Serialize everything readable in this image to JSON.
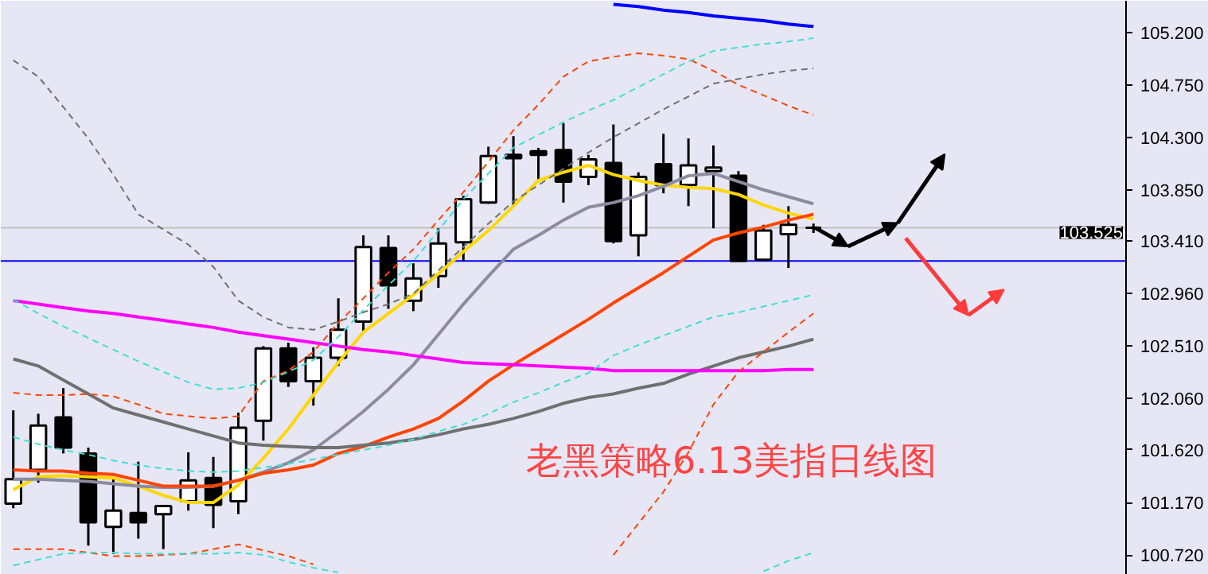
{
  "chart_data": {
    "type": "candlestick",
    "categories": [
      null,
      null,
      null,
      null,
      null,
      null,
      null,
      null,
      null,
      null,
      null,
      null,
      null,
      null,
      null,
      null,
      null,
      null,
      null,
      null,
      null,
      null,
      null,
      null,
      null,
      null,
      null,
      null,
      null,
      null,
      null,
      null,
      null,
      null,
      null,
      null,
      null,
      null,
      null,
      null,
      null,
      null,
      null,
      null,
      null
    ],
    "ohlc": [
      [
        101.16,
        101.96,
        101.12,
        101.37
      ],
      [
        101.45,
        101.93,
        101.34,
        101.83
      ],
      [
        101.9,
        102.15,
        101.59,
        101.64
      ],
      [
        101.59,
        101.64,
        100.8,
        101.0
      ],
      [
        100.96,
        101.38,
        100.73,
        101.1
      ],
      [
        101.08,
        101.52,
        100.86,
        101.0
      ],
      [
        101.07,
        101.14,
        100.77,
        101.14
      ],
      [
        101.18,
        101.6,
        101.1,
        101.36
      ],
      [
        101.38,
        101.56,
        100.95,
        101.15
      ],
      [
        101.18,
        101.94,
        101.07,
        101.81
      ],
      [
        101.87,
        102.51,
        101.7,
        102.49
      ],
      [
        102.49,
        102.54,
        102.16,
        102.21
      ],
      [
        102.21,
        102.5,
        102.0,
        102.41
      ],
      [
        102.41,
        102.92,
        102.34,
        102.65
      ],
      [
        102.72,
        103.46,
        102.64,
        103.36
      ],
      [
        103.35,
        103.46,
        102.83,
        103.03
      ],
      [
        102.9,
        103.22,
        102.81,
        103.09
      ],
      [
        103.11,
        103.52,
        103.01,
        103.39
      ],
      [
        103.4,
        103.8,
        103.24,
        103.77
      ],
      [
        103.74,
        104.22,
        103.73,
        104.14
      ],
      [
        104.15,
        104.31,
        103.71,
        104.12
      ],
      [
        104.18,
        104.21,
        103.93,
        104.15
      ],
      [
        104.19,
        104.42,
        103.74,
        103.92
      ],
      [
        103.96,
        104.15,
        103.89,
        104.11
      ],
      [
        104.08,
        104.41,
        103.39,
        103.41
      ],
      [
        103.46,
        104.0,
        103.28,
        103.96
      ],
      [
        104.07,
        104.33,
        103.82,
        103.89
      ],
      [
        103.89,
        104.29,
        103.71,
        104.06
      ],
      [
        104.01,
        104.23,
        103.52,
        104.04
      ],
      [
        103.97,
        104.01,
        103.24,
        103.24
      ],
      [
        103.25,
        103.55,
        103.25,
        103.5
      ],
      [
        103.47,
        103.71,
        103.18,
        103.55
      ],
      [
        103.525,
        103.56,
        103.48,
        103.525
      ],
      null,
      null,
      null,
      null,
      null,
      null,
      null,
      null,
      null,
      null,
      null,
      null
    ],
    "series": [
      {
        "type": "line",
        "color": "#ffd700",
        "values": [
          101.28,
          101.39,
          101.4,
          101.39,
          101.38,
          101.31,
          101.23,
          101.17,
          101.17,
          101.32,
          101.55,
          101.8,
          102.09,
          102.37,
          102.63,
          102.79,
          102.95,
          103.13,
          103.32,
          103.5,
          103.71,
          103.93,
          104.0,
          104.06,
          103.98,
          103.93,
          103.89,
          103.87,
          103.86,
          103.81,
          103.72,
          103.65,
          103.6,
          null,
          null,
          null,
          null,
          null,
          null,
          null,
          null,
          null,
          null,
          null,
          null
        ]
      },
      {
        "type": "line",
        "color": "#8c8ca0",
        "values": [
          101.37,
          101.37,
          101.36,
          101.35,
          101.33,
          101.31,
          101.3,
          101.3,
          101.31,
          101.36,
          101.43,
          101.51,
          101.62,
          101.78,
          101.95,
          102.14,
          102.35,
          102.61,
          102.87,
          103.11,
          103.34,
          103.46,
          103.59,
          103.7,
          103.74,
          103.8,
          103.88,
          103.97,
          103.99,
          103.92,
          103.85,
          103.79,
          103.73,
          null,
          null,
          null,
          null,
          null,
          null,
          null,
          null,
          null,
          null,
          null,
          null
        ]
      },
      {
        "type": "line",
        "color": "#ff4500",
        "values": [
          101.45,
          101.44,
          101.44,
          101.42,
          101.41,
          101.36,
          101.31,
          101.31,
          101.31,
          101.36,
          101.42,
          101.45,
          101.49,
          101.59,
          101.65,
          101.73,
          101.8,
          101.89,
          102.04,
          102.21,
          102.35,
          102.48,
          102.61,
          102.74,
          102.88,
          103.01,
          103.14,
          103.28,
          103.42,
          103.48,
          103.53,
          103.59,
          103.64,
          null,
          null,
          null,
          null,
          null,
          null,
          null,
          null,
          null,
          null,
          null,
          null
        ]
      },
      {
        "type": "line",
        "color": "#707070",
        "values": [
          102.4,
          102.34,
          102.22,
          102.1,
          101.98,
          101.92,
          101.86,
          101.8,
          101.74,
          101.68,
          101.66,
          101.65,
          101.64,
          101.64,
          101.66,
          101.68,
          101.71,
          101.75,
          101.8,
          101.84,
          101.89,
          101.95,
          102.02,
          102.07,
          102.1,
          102.15,
          102.19,
          102.27,
          102.34,
          102.41,
          102.46,
          102.51,
          102.57,
          null,
          null,
          null,
          null,
          null,
          null,
          null,
          null,
          null,
          null,
          null,
          null
        ]
      },
      {
        "type": "line",
        "color": "#ff00ff",
        "values": [
          102.9,
          102.87,
          102.84,
          102.81,
          102.79,
          102.76,
          102.73,
          102.7,
          102.67,
          102.63,
          102.6,
          102.57,
          102.54,
          102.51,
          102.48,
          102.46,
          102.43,
          102.4,
          102.37,
          102.36,
          102.35,
          102.34,
          102.33,
          102.32,
          102.3,
          102.3,
          102.3,
          102.3,
          102.3,
          102.3,
          102.3,
          102.31,
          102.31,
          null,
          null,
          null,
          null,
          null,
          null,
          null,
          null,
          null,
          null,
          null,
          null
        ]
      },
      {
        "type": "line",
        "color": "#0000ff",
        "values": [
          null,
          null,
          null,
          null,
          null,
          null,
          null,
          null,
          null,
          null,
          null,
          null,
          null,
          null,
          null,
          null,
          null,
          null,
          null,
          null,
          null,
          null,
          null,
          null,
          105.44,
          105.42,
          105.39,
          105.37,
          105.34,
          105.32,
          105.3,
          105.27,
          105.25,
          null,
          null,
          null,
          null,
          null,
          null,
          null,
          null,
          null,
          null,
          null,
          null
        ]
      },
      {
        "type": "line",
        "color": "#ff4500",
        "line_style": "dashed",
        "values": [
          102.11,
          102.09,
          102.09,
          102.1,
          102.08,
          102.01,
          101.93,
          101.91,
          101.89,
          101.91,
          102.21,
          102.3,
          102.46,
          102.71,
          102.92,
          103.14,
          103.34,
          103.59,
          103.83,
          104.09,
          104.36,
          104.58,
          104.82,
          104.95,
          104.99,
          105.02,
          105.0,
          104.97,
          104.87,
          104.75,
          104.66,
          104.57,
          104.49,
          null,
          null,
          null,
          null,
          null,
          null,
          null,
          null,
          null,
          null,
          null,
          null
        ]
      },
      {
        "type": "line",
        "color": "#ff4500",
        "line_style": "dashed",
        "values": [
          100.77,
          100.77,
          100.77,
          100.74,
          100.71,
          100.71,
          100.72,
          100.73,
          100.77,
          100.81,
          100.76,
          100.71,
          100.64,
          null,
          null,
          null,
          null,
          null,
          null,
          null,
          null,
          null,
          null,
          null,
          100.72,
          100.99,
          101.26,
          101.6,
          102.01,
          102.29,
          102.46,
          102.63,
          102.79,
          null,
          null,
          null,
          null,
          null,
          null,
          null,
          null,
          null,
          null,
          null,
          null
        ]
      },
      {
        "type": "line",
        "color": "#40e0d0",
        "line_style": "dashed",
        "values": [
          102.91,
          102.79,
          102.68,
          102.58,
          102.48,
          102.38,
          102.29,
          102.2,
          102.14,
          102.15,
          102.2,
          102.29,
          102.39,
          102.59,
          102.82,
          103.03,
          103.24,
          103.5,
          103.77,
          103.99,
          104.21,
          104.32,
          104.43,
          104.53,
          104.62,
          104.73,
          104.84,
          104.95,
          105.04,
          105.07,
          105.1,
          105.12,
          105.15,
          null,
          null,
          null,
          null,
          null,
          null,
          null,
          null,
          null,
          null,
          null,
          null
        ]
      },
      {
        "type": "line",
        "color": "#40e0d0",
        "line_style": "dashed",
        "values": [
          101.73,
          101.67,
          101.62,
          101.58,
          101.53,
          101.49,
          101.46,
          101.44,
          101.43,
          101.44,
          101.47,
          101.5,
          101.54,
          101.58,
          101.62,
          101.66,
          101.71,
          101.78,
          101.84,
          101.93,
          102.03,
          102.11,
          102.2,
          102.28,
          102.43,
          102.52,
          102.6,
          102.68,
          102.76,
          102.8,
          102.85,
          102.9,
          102.95,
          null,
          null,
          null,
          null,
          null,
          null,
          null,
          null,
          null,
          null,
          null,
          null
        ]
      },
      {
        "type": "line",
        "color": "#40e0d0",
        "line_style": "dashed",
        "values": [
          100.63,
          100.68,
          100.73,
          100.74,
          100.74,
          100.73,
          100.73,
          100.73,
          100.73,
          100.74,
          100.72,
          100.66,
          100.61,
          100.57,
          null,
          null,
          null,
          null,
          null,
          null,
          null,
          null,
          null,
          null,
          null,
          null,
          null,
          null,
          null,
          null,
          100.58,
          100.67,
          100.74,
          null,
          null,
          null,
          null,
          null,
          null,
          null,
          null,
          null,
          null,
          null,
          null
        ]
      },
      {
        "type": "line",
        "color": "#707070",
        "line_style": "dashed",
        "values": [
          104.96,
          104.82,
          104.56,
          104.29,
          103.98,
          103.64,
          103.51,
          103.38,
          103.19,
          102.9,
          102.76,
          102.67,
          102.65,
          102.72,
          102.8,
          102.87,
          102.96,
          103.16,
          103.36,
          103.56,
          103.75,
          103.89,
          104.03,
          104.17,
          104.3,
          104.42,
          104.54,
          104.65,
          104.76,
          104.8,
          104.84,
          104.87,
          104.89,
          null,
          null,
          null,
          null,
          null,
          null,
          null,
          null,
          null,
          null,
          null,
          null
        ]
      }
    ],
    "ylim": [
      100.55,
      105.47
    ],
    "yticks": [
      {
        "value": 100.72,
        "label": "100.720"
      },
      {
        "value": 101.17,
        "label": "101.170"
      },
      {
        "value": 101.62,
        "label": "101.620"
      },
      {
        "value": 102.06,
        "label": "102.060"
      },
      {
        "value": 102.51,
        "label": "102.510"
      },
      {
        "value": 102.96,
        "label": "102.960"
      },
      {
        "value": 103.41,
        "label": "103.410"
      },
      {
        "value": 103.85,
        "label": "103.850"
      },
      {
        "value": 104.3,
        "label": "104.300"
      },
      {
        "value": 104.75,
        "label": "104.750"
      },
      {
        "value": 105.2,
        "label": "105.200"
      }
    ],
    "ref_lines": [
      {
        "axis": "y",
        "value": 103.525,
        "label": "103.525",
        "color": "#c0c0c0"
      },
      {
        "axis": "y",
        "value": 103.24,
        "color": "#0000ff"
      }
    ],
    "annotations": [
      "老黑策略6.13美指日线图"
    ],
    "tick_labels": "y",
    "grid": false
  }
}
